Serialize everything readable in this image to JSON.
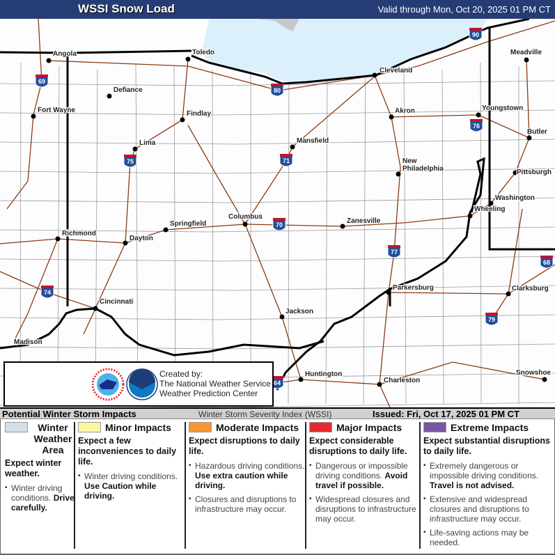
{
  "header": {
    "title": "WSSI Snow Load",
    "valid": "Valid through Mon, Oct 20, 2025 01 PM CT"
  },
  "map": {
    "cities": [
      "Angola",
      "Toledo",
      "Defiance",
      "Fort Wayne",
      "Findlay",
      "Lima",
      "Mansfield",
      "Cleveland",
      "Akron",
      "Youngstown",
      "Meadville",
      "Butler",
      "New",
      "Philadelphia",
      "Pittsburgh",
      "Washington",
      "Wheeling",
      "Columbus",
      "Springfield",
      "Dayton",
      "Richmond",
      "Zanesville",
      "Cincinnati",
      "Parkersburg",
      "Clarksburg",
      "Jackson",
      "Huntington",
      "Charleston",
      "Snowshoe",
      "Madison"
    ],
    "interstates": [
      "90",
      "69",
      "80",
      "75",
      "71",
      "76",
      "70",
      "77",
      "68",
      "74",
      "79",
      "64"
    ],
    "colors": {
      "lake": "#dcf0fc",
      "roads": "#8b3a0f",
      "state_lines": "#000000",
      "county_lines": "#888888"
    }
  },
  "credits": {
    "line1": "Created by:",
    "line2": "The National Weather Service",
    "line3": "Weather Prediction Center",
    "logos": [
      "NWS logo",
      "NOAA logo"
    ]
  },
  "legend": {
    "title": "Potential Winter Storm Impacts",
    "index": "Winter Storm Severity Index (WSSI)",
    "issued": "Issued: Fri, Oct 17, 2025 01 PM CT",
    "categories": [
      {
        "name": "Winter Weather Area",
        "color": "#d3dfe8",
        "expect": "Expect winter weather.",
        "bullets": [
          {
            "text": "Winter driving conditions. ",
            "bold": "Drive carefully."
          }
        ]
      },
      {
        "name": "Minor Impacts",
        "color": "#faf7a0",
        "expect": "Expect a few inconveniences to daily life.",
        "bullets": [
          {
            "text": "Winter driving conditions. ",
            "bold": "Use Caution while driving."
          }
        ]
      },
      {
        "name": "Moderate Impacts",
        "color": "#f79633",
        "expect": "Expect disruptions to daily life.",
        "bullets": [
          {
            "text": "Hazardous driving conditions. ",
            "bold": "Use extra caution while driving."
          },
          {
            "text": "Closures and disruptions to infrastructure may occur.",
            "bold": ""
          }
        ]
      },
      {
        "name": "Major Impacts",
        "color": "#e52b31",
        "expect": "Expect considerable disruptions to daily life.",
        "bullets": [
          {
            "text": "Dangerous or impossible driving conditions. ",
            "bold": "Avoid travel if possible."
          },
          {
            "text": "Widespread closures and disruptions to infrastructure may occur.",
            "bold": ""
          }
        ]
      },
      {
        "name": "Extreme Impacts",
        "color": "#7a55a5",
        "expect": "Expect substantial disruptions to daily life.",
        "bullets": [
          {
            "text": "Extremely dangerous or impossible driving conditions. ",
            "bold": "Travel is not advised."
          },
          {
            "text": "Extensive and widespread closures and disruptions to infrastructure may occur.",
            "bold": ""
          },
          {
            "text": "Life-saving actions may be needed.",
            "bold": ""
          }
        ]
      }
    ]
  }
}
